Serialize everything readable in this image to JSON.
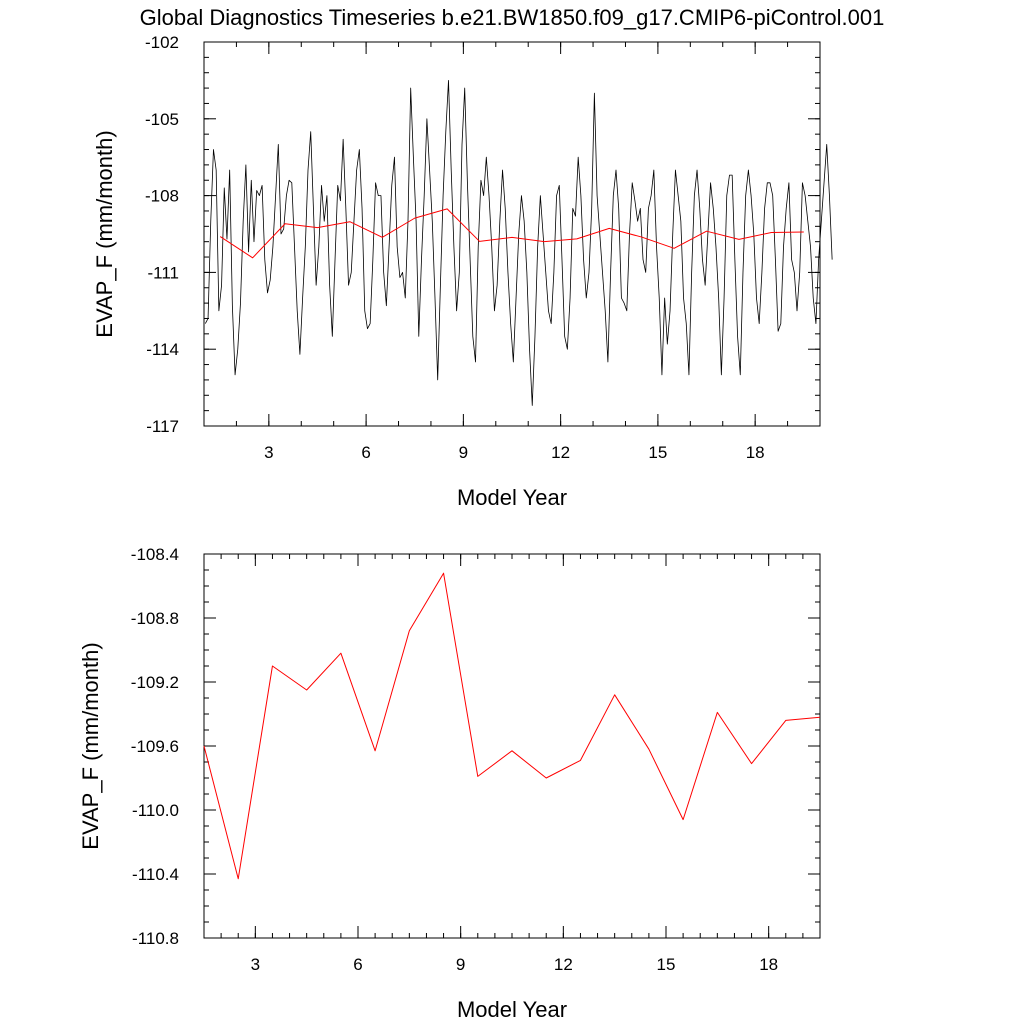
{
  "title": "Global Diagnostics Timeseries b.e21.BW1850.f09_g17.CMIP6-piControl.001",
  "colors": {
    "monthly": "#000000",
    "annual": "#ff0000",
    "axes": "#000000"
  },
  "chart_data": [
    {
      "type": "line",
      "xlabel": "Model Year",
      "ylabel": "EVAP_F (mm/month)",
      "xlim": [
        1.0,
        20.0
      ],
      "ylim": [
        -117,
        -102
      ],
      "xticks": [
        3,
        6,
        9,
        12,
        15,
        18
      ],
      "xtick_labels": [
        "3",
        "6",
        "9",
        "12",
        "15",
        "18"
      ],
      "yticks": [
        -117,
        -114,
        -111,
        -108,
        -105,
        -102
      ],
      "ytick_labels": [
        "-117",
        "-114",
        "-111",
        "-108",
        "-105",
        "-102"
      ],
      "grid": false,
      "series": [
        {
          "color": "#000000",
          "x_start": 1.0417,
          "x_step": 0.08333,
          "values": [
            -113.0,
            -112.8,
            -109.0,
            -106.2,
            -107.0,
            -112.5,
            -111.5,
            -107.7,
            -109.7,
            -107.0,
            -112.3,
            -115.0,
            -114.0,
            -112.2,
            -109.0,
            -106.8,
            -110.2,
            -107.4,
            -109.8,
            -107.8,
            -108.0,
            -107.6,
            -110.5,
            -111.8,
            -111.3,
            -110.0,
            -108.0,
            -106.0,
            -109.5,
            -109.3,
            -108.0,
            -107.4,
            -107.5,
            -110.0,
            -112.5,
            -114.2,
            -112.0,
            -110.0,
            -107.0,
            -105.5,
            -108.5,
            -111.5,
            -110.0,
            -107.6,
            -109.0,
            -108.0,
            -111.5,
            -113.5,
            -110.5,
            -107.6,
            -108.2,
            -105.8,
            -108.5,
            -111.5,
            -111.0,
            -109.0,
            -107.0,
            -106.2,
            -108.5,
            -112.5,
            -113.2,
            -113.0,
            -110.5,
            -107.5,
            -108.0,
            -108.0,
            -111.0,
            -112.3,
            -110.0,
            -107.6,
            -106.5,
            -110.0,
            -111.2,
            -111.0,
            -112.0,
            -109.0,
            -103.8,
            -106.5,
            -109.0,
            -113.5,
            -110.5,
            -108.0,
            -105.0,
            -107.0,
            -109.0,
            -112.0,
            -115.2,
            -111.5,
            -108.0,
            -105.5,
            -103.5,
            -107.0,
            -110.0,
            -112.5,
            -111.0,
            -106.0,
            -103.8,
            -107.5,
            -110.5,
            -113.5,
            -114.5,
            -110.0,
            -107.4,
            -108.0,
            -106.5,
            -108.0,
            -110.0,
            -112.5,
            -111.5,
            -109.0,
            -107.0,
            -108.5,
            -111.0,
            -113.0,
            -114.5,
            -112.0,
            -109.5,
            -108.0,
            -109.0,
            -111.0,
            -114.0,
            -116.2,
            -113.5,
            -110.0,
            -108.0,
            -109.5,
            -111.0,
            -112.5,
            -113.0,
            -111.0,
            -108.0,
            -107.6,
            -110.5,
            -113.5,
            -114.0,
            -112.0,
            -108.5,
            -108.8,
            -106.5,
            -108.0,
            -110.5,
            -112.0,
            -111.0,
            -108.5,
            -104.0,
            -108.0,
            -109.5,
            -111.0,
            -112.5,
            -114.5,
            -111.0,
            -108.0,
            -107.0,
            -108.5,
            -112.0,
            -112.2,
            -112.5,
            -109.5,
            -107.5,
            -108.2,
            -109.0,
            -108.5,
            -110.5,
            -111.0,
            -108.5,
            -108.0,
            -107.0,
            -110.0,
            -112.0,
            -115.0,
            -112.0,
            -113.8,
            -112.5,
            -109.5,
            -107.0,
            -108.0,
            -109.0,
            -112.0,
            -113.0,
            -115.0,
            -111.0,
            -108.0,
            -107.0,
            -108.5,
            -110.5,
            -111.5,
            -109.5,
            -107.5,
            -108.5,
            -110.0,
            -112.0,
            -115.0,
            -112.0,
            -108.0,
            -107.2,
            -107.2,
            -110.5,
            -113.5,
            -115.0,
            -111.0,
            -108.0,
            -107.0,
            -108.0,
            -109.5,
            -112.0,
            -113.0,
            -111.0,
            -108.5,
            -107.5,
            -107.5,
            -108.0,
            -110.5,
            -113.3,
            -113.0,
            -110.0,
            -108.5,
            -107.5,
            -110.5,
            -111.0,
            -112.5,
            -111.0,
            -107.5,
            -108.0,
            -109.0,
            -110.0,
            -112.0,
            -113.0,
            -110.5,
            -109.0,
            -107.5,
            -106.0,
            -108.0,
            -110.5
          ]
        },
        {
          "color": "#ff0000",
          "x": [
            1.5,
            2.5,
            3.5,
            4.5,
            5.5,
            6.5,
            7.5,
            8.5,
            9.5,
            10.5,
            11.5,
            12.5,
            13.5,
            14.5,
            15.5,
            16.5,
            17.5,
            18.5,
            19.5
          ],
          "values": [
            -109.6,
            -110.43,
            -109.1,
            -109.25,
            -109.02,
            -109.63,
            -108.88,
            -108.52,
            -109.79,
            -109.63,
            -109.8,
            -109.69,
            -109.28,
            -109.62,
            -110.06,
            -109.39,
            -109.71,
            -109.44,
            -109.42
          ]
        }
      ]
    },
    {
      "type": "line",
      "xlabel": "Model Year",
      "ylabel": "EVAP_F (mm/month)",
      "xlim": [
        1.5,
        19.5
      ],
      "ylim": [
        -110.8,
        -108.4
      ],
      "xticks": [
        3,
        6,
        9,
        12,
        15,
        18
      ],
      "xtick_labels": [
        "3",
        "6",
        "9",
        "12",
        "15",
        "18"
      ],
      "yticks": [
        -110.8,
        -110.4,
        -110.0,
        -109.6,
        -109.2,
        -108.8,
        -108.4
      ],
      "ytick_labels": [
        "-110.8",
        "-110.4",
        "-110.0",
        "-109.6",
        "-109.2",
        "-108.8",
        "-108.4"
      ],
      "grid": false,
      "series": [
        {
          "color": "#ff0000",
          "x": [
            1.5,
            2.5,
            3.5,
            4.5,
            5.5,
            6.5,
            7.5,
            8.5,
            9.5,
            10.5,
            11.5,
            12.5,
            13.5,
            14.5,
            15.5,
            16.5,
            17.5,
            18.5,
            19.5
          ],
          "values": [
            -109.6,
            -110.43,
            -109.1,
            -109.25,
            -109.02,
            -109.63,
            -108.88,
            -108.52,
            -109.79,
            -109.63,
            -109.8,
            -109.69,
            -109.28,
            -109.62,
            -110.06,
            -109.39,
            -109.71,
            -109.44,
            -109.42
          ]
        }
      ]
    }
  ]
}
